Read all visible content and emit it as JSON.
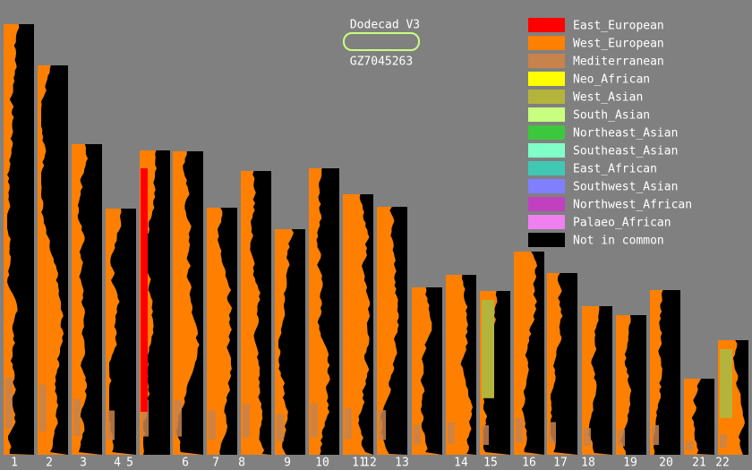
{
  "header": {
    "title": "Dodecad V3",
    "sample_id": "GZ7045263"
  },
  "legend": {
    "items": [
      {
        "name": "East_European",
        "color": "#ff0000"
      },
      {
        "name": "West_European",
        "color": "#ff8000"
      },
      {
        "name": "Mediterranean",
        "color": "#c8824b"
      },
      {
        "name": "Neo_African",
        "color": "#ffff00"
      },
      {
        "name": "West_Asian",
        "color": "#b4b43c"
      },
      {
        "name": "South_Asian",
        "color": "#c8ff80"
      },
      {
        "name": "Northeast_Asian",
        "color": "#3cc83c"
      },
      {
        "name": "Southeast_Asian",
        "color": "#80ffc8"
      },
      {
        "name": "East_African",
        "color": "#40c8b4"
      },
      {
        "name": "Southwest_Asian",
        "color": "#8080ff"
      },
      {
        "name": "Northwest_African",
        "color": "#c040c0"
      },
      {
        "name": "Palaeo_African",
        "color": "#f080f0"
      },
      {
        "name": "Not in common",
        "color": "#000000"
      }
    ]
  },
  "chromosomes": {
    "labels": [
      "1",
      "2",
      "3",
      "4",
      "5",
      "6",
      "7",
      "8",
      "9",
      "10",
      "11",
      "12",
      "13",
      "14",
      "15",
      "16",
      "17",
      "18",
      "19",
      "20",
      "21",
      "22"
    ]
  }
}
